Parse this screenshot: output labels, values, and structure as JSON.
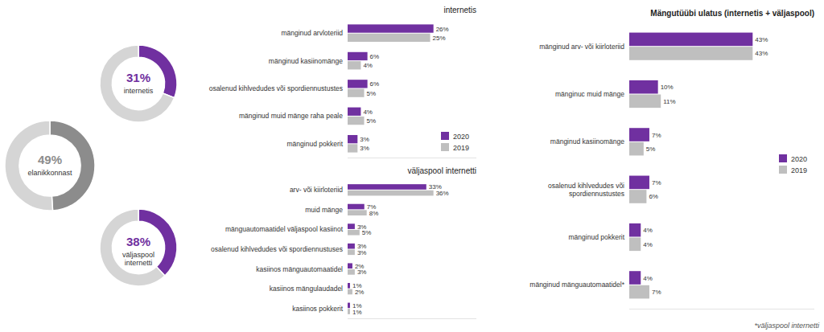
{
  "chart_data": [
    {
      "type": "donut",
      "categories": [
        "elanikkonnast",
        null
      ],
      "values": [
        49,
        51
      ],
      "value_labels": [
        "49%",
        null
      ],
      "colors": [
        "#8C8C8C",
        "#D5D5D5"
      ],
      "data_labels": true
    },
    {
      "type": "donut",
      "categories": [
        "internetis",
        null
      ],
      "values": [
        31,
        69
      ],
      "value_labels": [
        "31%",
        null
      ],
      "colors": [
        "#7030A0",
        "#D5D5D5"
      ],
      "data_labels": true
    },
    {
      "type": "donut",
      "categories": [
        "väljaspool\ninternetti",
        null
      ],
      "values": [
        38,
        62
      ],
      "value_labels": [
        "38%",
        null
      ],
      "colors": [
        "#7030A0",
        "#D5D5D5"
      ],
      "data_labels": true
    },
    {
      "type": "bar",
      "orientation": "horizontal",
      "title": "internetis",
      "categories": [
        "mänginud arvloteriid",
        "mänginud kasiinomänge",
        "osalenud kihlvedudes või spordiennustustes",
        "mänginud muid mänge raha peale",
        "mänginud pokkerit"
      ],
      "series": [
        {
          "name": "2020",
          "color": "#7030A0",
          "values": [
            26,
            6,
            6,
            4,
            3
          ],
          "value_labels": [
            "26%",
            "6%",
            "6%",
            "4%",
            "3%"
          ]
        },
        {
          "name": "2019",
          "color": "#BFBFBF",
          "values": [
            25,
            4,
            5,
            5,
            3
          ],
          "value_labels": [
            "25%",
            "4%",
            "5%",
            "5%",
            "3%"
          ]
        }
      ],
      "xlim": [
        0,
        39
      ],
      "tick_labels": false,
      "grid": false,
      "legend": "lower right",
      "data_labels": true
    },
    {
      "type": "bar",
      "orientation": "horizontal",
      "title": "väljaspool internetti",
      "categories": [
        "arv- või kiirloteriid",
        "muid mänge",
        "mänguautomaatidel väljaspool kasiinot",
        "osalenud kihlvedudes või spordiennustuses",
        "kasiinos mänguautomaatidel",
        "kasiinos mängulaudadel",
        "kasiinos pokkerit"
      ],
      "series": [
        {
          "color": "#7030A0",
          "values": [
            33,
            7,
            3,
            3,
            2,
            1,
            1
          ],
          "value_labels": [
            "33%",
            "7%",
            "3%",
            "3%",
            "2%",
            "1%",
            "1%"
          ]
        },
        {
          "color": "#BFBFBF",
          "values": [
            36,
            8,
            5,
            3,
            3,
            2,
            1
          ],
          "value_labels": [
            "36%",
            "8%",
            "5%",
            "3%",
            "3%",
            "2%",
            "1%"
          ]
        }
      ],
      "xlim": [
        0,
        54
      ],
      "tick_labels": false,
      "grid": false,
      "data_labels": true
    },
    {
      "type": "bar",
      "orientation": "horizontal",
      "title": "Mängutüübi ulatus (internetis + väljaspool)",
      "categories": [
        "mänginud arv- või kiirloteriid",
        "mänginuc muid mänge",
        "mänginud kasiinomänge",
        "osalenud kihlvedudes või\nspordiennustustes",
        "mänginud pokkerit",
        "mänginud mänguautomaatidel*"
      ],
      "series": [
        {
          "name": "2020",
          "color": "#7030A0",
          "values": [
            43,
            10,
            7,
            7,
            4,
            4
          ],
          "value_labels": [
            "43%",
            "10%",
            "7%",
            "7%",
            "4%",
            "4%"
          ]
        },
        {
          "name": "2019",
          "color": "#BFBFBF",
          "values": [
            43,
            11,
            5,
            6,
            4,
            7
          ],
          "value_labels": [
            "43%",
            "11%",
            "5%",
            "6%",
            "4%",
            "7%"
          ]
        }
      ],
      "xlim": [
        0,
        64.5
      ],
      "tick_labels": false,
      "grid": false,
      "legend": "right",
      "data_labels": true,
      "annotations": [
        "*väljaspool internetti"
      ]
    }
  ]
}
